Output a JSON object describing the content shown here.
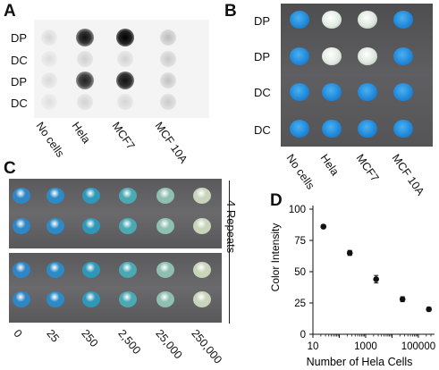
{
  "panelA": {
    "letter": "A",
    "row_labels": [
      "DP",
      "DC",
      "DP",
      "DC"
    ],
    "col_labels": [
      "No cells",
      "Hela",
      "MCF7",
      "MCF 10A"
    ]
  },
  "panelB": {
    "letter": "B",
    "row_labels": [
      "DP",
      "DP",
      "DC",
      "DC"
    ],
    "col_labels": [
      "No cells",
      "Hela",
      "MCF7",
      "MCF 10A"
    ],
    "colors": {
      "blue": "#1f86d8",
      "white": "#dfe8e0",
      "plate": "#5b5b5e"
    }
  },
  "panelC": {
    "letter": "C",
    "repeats_label": "4 Repeats",
    "x_labels": [
      "0",
      "25",
      "250",
      "2,500",
      "25,000",
      "250,000"
    ],
    "well_colors": [
      "#2f86c6",
      "#2c8ac6",
      "#2f97b8",
      "#4aa9b3",
      "#8fbfb1",
      "#c9d4bb"
    ]
  },
  "panelD": {
    "letter": "D"
  },
  "chart_data": {
    "type": "scatter",
    "title": "",
    "xlabel": "Number of Hela Cells",
    "ylabel": "Color Intensity",
    "x_scale": "log",
    "xlim": [
      10,
      300000
    ],
    "ylim": [
      0,
      100
    ],
    "x_ticks": [
      "10",
      "1000",
      "100000"
    ],
    "y_ticks": [
      "0",
      "25",
      "50",
      "75",
      "100"
    ],
    "x": [
      25,
      250,
      2500,
      25000,
      250000
    ],
    "y": [
      86,
      65,
      44,
      28,
      20
    ],
    "error": [
      1.5,
      2,
      3,
      2,
      1.5
    ]
  }
}
